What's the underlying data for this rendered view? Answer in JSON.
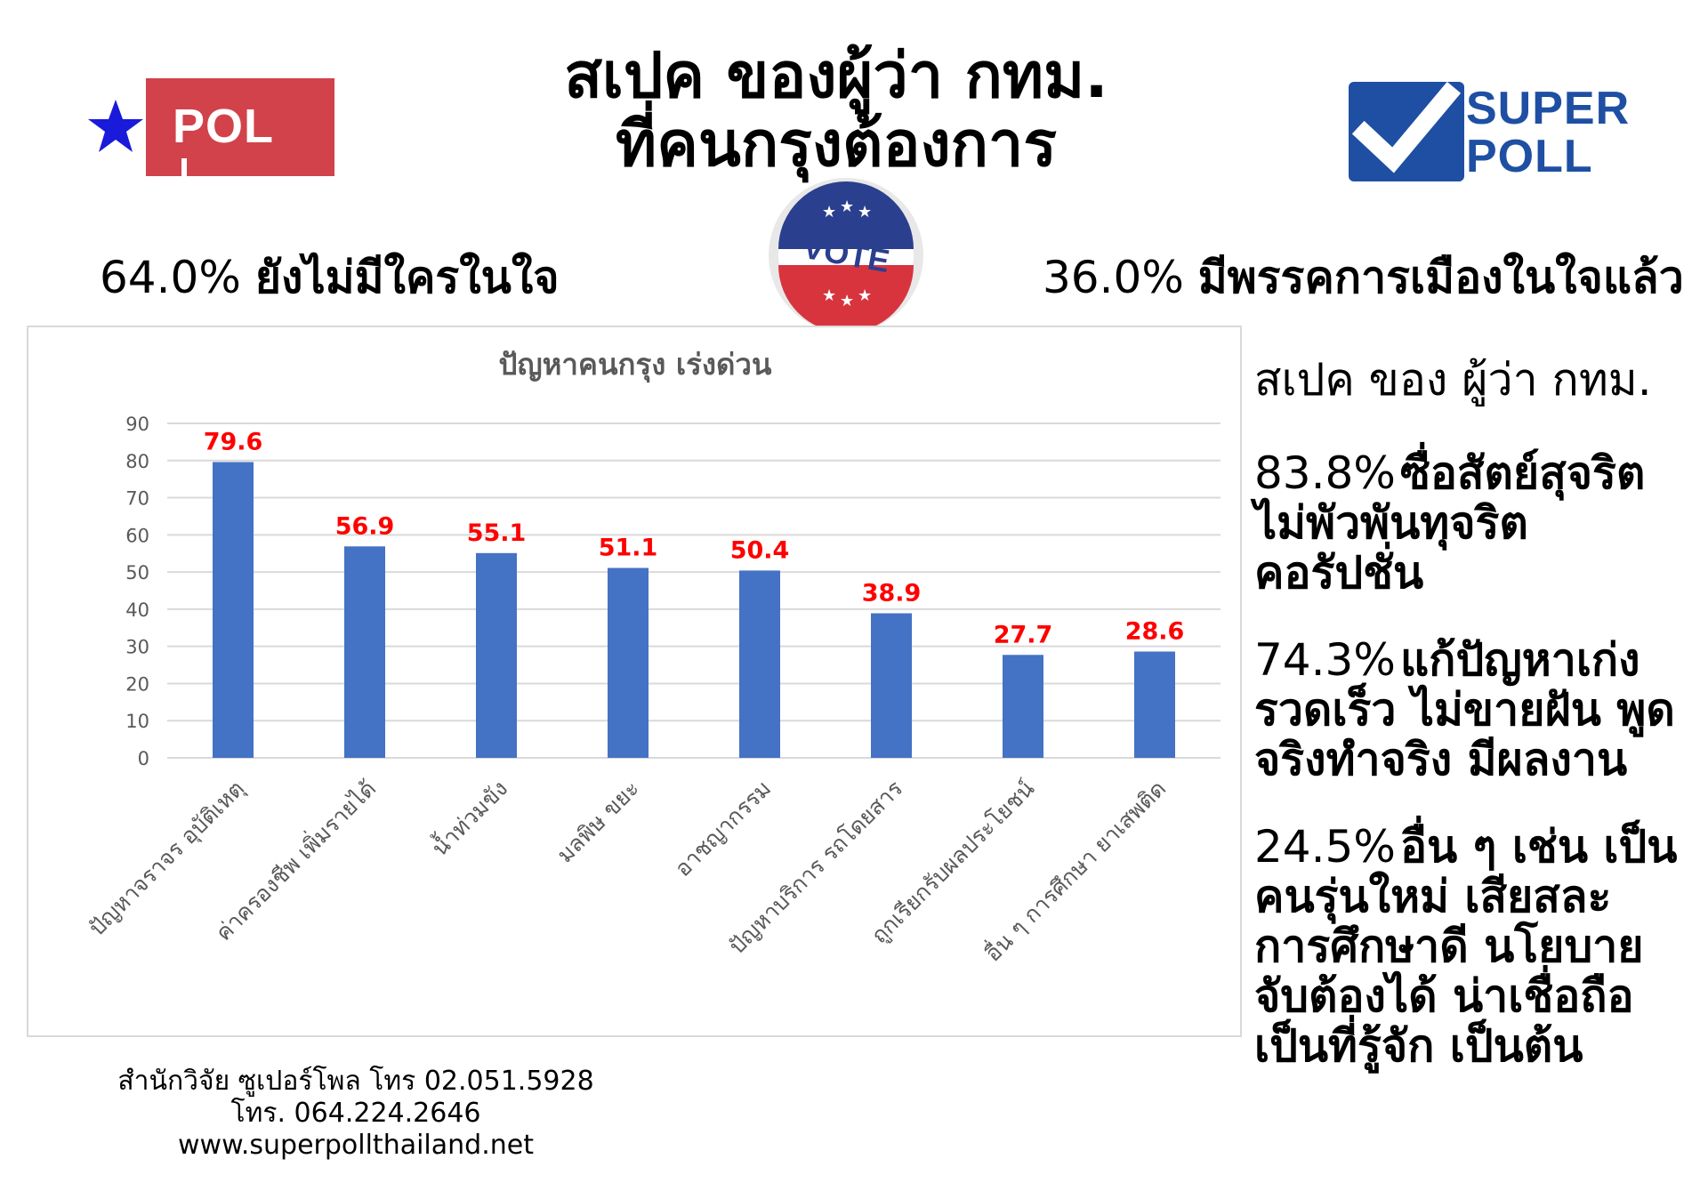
{
  "header": {
    "title_line1": "สเปค ของผู้ว่า กทม.",
    "title_line2": "ที่คนกรุงต้องการ"
  },
  "logos": {
    "pol_text": "POL",
    "super_text": "SUPER",
    "poll_text": "POLL",
    "vote_text": "VOTE",
    "pol_red": "#d2424a",
    "star_blue": "#1a1adb",
    "superpoll_blue": "#1e4fa3"
  },
  "stats": {
    "left_pct": "64.0%",
    "left_label": "ยังไม่มีใครในใจ",
    "right_pct": "36.0%",
    "right_label": "มีพรรคการเมืองในใจแล้ว"
  },
  "chart_data": {
    "type": "bar",
    "title": "ปัญหาคนกรุง เร่งด่วน",
    "categories": [
      "ปัญหาจราจร อุบัติเหตุ",
      "ค่าครองชีพ เพิ่มรายได้",
      "น้ำท่วมขัง",
      "มลพิษ ขยะ",
      "อาชญากรรม",
      "ปัญหาบริการ รถโดยสาร",
      "ถูกเรียกรับผลประโยชน์",
      "อื่น ๆ การศึกษา ยาเสพติด"
    ],
    "values": [
      79.6,
      56.9,
      55.1,
      51.1,
      50.4,
      38.9,
      27.7,
      28.6
    ],
    "ylim": [
      0,
      90
    ],
    "yticks": [
      "0",
      "10",
      "20",
      "30",
      "40",
      "50",
      "60",
      "70",
      "80",
      "90"
    ],
    "grid": true,
    "bar_color": "#4472c4",
    "label_color": "#ff0000"
  },
  "specs": {
    "title": "สเปค ของ ผู้ว่า กทม.",
    "items": [
      {
        "pct": "83.8%",
        "lines": [
          "ซื่อสัตย์สุจริต",
          "ไม่พัวพันทุจริต",
          "คอรัปชั่น"
        ]
      },
      {
        "pct": "74.3%",
        "lines": [
          "แก้ปัญหาเก่ง",
          "รวดเร็ว ไม่ขายฝัน พูด",
          "จริงทำจริง มีผลงาน"
        ]
      },
      {
        "pct": "24.5%",
        "lines": [
          "อื่น ๆ เช่น เป็น",
          "คนรุ่นใหม่ เสียสละ",
          "การศึกษาดี นโยบาย",
          "จับต้องได้ น่าเชื่อถือ",
          "เป็นที่รู้จัก เป็นต้น"
        ]
      }
    ]
  },
  "footer": {
    "line1": "สำนักวิจัย ซูเปอร์โพล โทร 02.051.5928",
    "line2": "โทร. 064.224.2646",
    "line3": "www.superpollthailand.net"
  }
}
